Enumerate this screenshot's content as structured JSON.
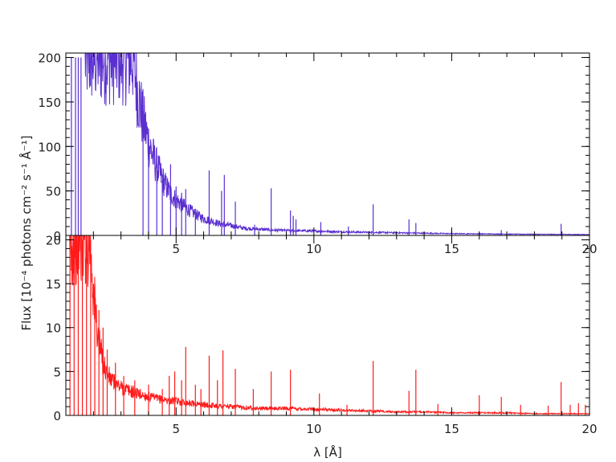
{
  "chart_data": [
    {
      "type": "line",
      "panel": "top",
      "xlabel": "",
      "ylabel": "",
      "xlim": [
        1.0,
        20.0
      ],
      "ylim": [
        0,
        205
      ],
      "xticks": [
        5,
        10,
        15,
        20
      ],
      "yticks": [
        0,
        50,
        100,
        150,
        200
      ],
      "xtick_labels": [
        "5",
        "10",
        "15",
        "20"
      ],
      "ytick_labels": [
        "0",
        "50",
        "100",
        "150",
        "200"
      ],
      "color": "#5a2fd0",
      "grid": false,
      "continuum": [
        [
          1.7,
          200
        ],
        [
          3.45,
          200
        ],
        [
          3.6,
          162
        ],
        [
          3.8,
          130
        ],
        [
          4.0,
          105
        ],
        [
          4.2,
          85
        ],
        [
          4.4,
          70
        ],
        [
          4.6,
          57
        ],
        [
          4.8,
          47
        ],
        [
          5.0,
          40
        ],
        [
          5.2,
          35
        ],
        [
          5.4,
          30
        ],
        [
          5.6,
          26
        ],
        [
          5.8,
          22
        ],
        [
          6.0,
          19
        ],
        [
          6.3,
          16
        ],
        [
          6.6,
          13
        ],
        [
          7.0,
          11
        ],
        [
          7.5,
          8
        ],
        [
          8.0,
          7
        ],
        [
          8.5,
          6
        ],
        [
          9.0,
          5.5
        ],
        [
          10.0,
          5
        ],
        [
          11.0,
          4
        ],
        [
          12.0,
          3.5
        ],
        [
          13.0,
          3
        ],
        [
          14.0,
          2.5
        ],
        [
          15.0,
          2
        ],
        [
          16.0,
          1.8
        ],
        [
          17.0,
          1.5
        ],
        [
          18.0,
          1.3
        ],
        [
          19.0,
          1.2
        ],
        [
          20.0,
          1
        ]
      ],
      "lines": [
        [
          1.2,
          200
        ],
        [
          1.35,
          200
        ],
        [
          1.45,
          200
        ],
        [
          1.55,
          200
        ],
        [
          3.8,
          140
        ],
        [
          4.0,
          108
        ],
        [
          4.3,
          80
        ],
        [
          4.5,
          62
        ],
        [
          4.8,
          80
        ],
        [
          5.0,
          55
        ],
        [
          5.2,
          48
        ],
        [
          5.35,
          52
        ],
        [
          5.7,
          30
        ],
        [
          6.2,
          73
        ],
        [
          6.65,
          50
        ],
        [
          6.75,
          68
        ],
        [
          7.15,
          38
        ],
        [
          7.85,
          12
        ],
        [
          8.45,
          53
        ],
        [
          9.15,
          28
        ],
        [
          9.25,
          22
        ],
        [
          9.35,
          18
        ],
        [
          10.25,
          15
        ],
        [
          11.25,
          10
        ],
        [
          12.15,
          35
        ],
        [
          13.45,
          18
        ],
        [
          13.7,
          14
        ],
        [
          15.0,
          6
        ],
        [
          16.8,
          6
        ],
        [
          18.97,
          13
        ]
      ]
    },
    {
      "type": "line",
      "panel": "bottom",
      "xlabel": "λ [Å]",
      "ylabel": "Flux [10⁻⁴ photons cm⁻² s⁻¹ Å⁻¹]",
      "xlim": [
        1.0,
        20.0
      ],
      "ylim": [
        0,
        20.5
      ],
      "xticks": [
        5,
        10,
        15,
        20
      ],
      "yticks": [
        0,
        5,
        10,
        15,
        20
      ],
      "xtick_labels": [
        "5",
        "10",
        "15",
        "20"
      ],
      "ytick_labels": [
        "0",
        "5",
        "10",
        "15",
        "20"
      ],
      "color": "#ff1a1a",
      "grid": false,
      "continuum": [
        [
          1.1,
          20
        ],
        [
          1.9,
          20
        ],
        [
          2.0,
          14
        ],
        [
          2.2,
          8
        ],
        [
          2.4,
          5.5
        ],
        [
          2.6,
          4.2
        ],
        [
          2.8,
          3.6
        ],
        [
          3.0,
          3.2
        ],
        [
          3.3,
          2.8
        ],
        [
          3.6,
          2.5
        ],
        [
          4.0,
          2.1
        ],
        [
          4.5,
          1.8
        ],
        [
          5.0,
          1.6
        ],
        [
          5.5,
          1.4
        ],
        [
          6.0,
          1.2
        ],
        [
          6.5,
          1.1
        ],
        [
          7.0,
          1.0
        ],
        [
          7.5,
          0.9
        ],
        [
          8.0,
          0.8
        ],
        [
          9.0,
          0.8
        ],
        [
          10.0,
          0.7
        ],
        [
          11.0,
          0.6
        ],
        [
          12.0,
          0.5
        ],
        [
          13.0,
          0.4
        ],
        [
          14.0,
          0.4
        ],
        [
          15.0,
          0.3
        ],
        [
          16.0,
          0.3
        ],
        [
          17.0,
          0.3
        ],
        [
          18.0,
          0.2
        ],
        [
          19.0,
          0.2
        ],
        [
          20.0,
          0.2
        ]
      ],
      "lines": [
        [
          1.15,
          20
        ],
        [
          1.3,
          20
        ],
        [
          1.45,
          20
        ],
        [
          1.6,
          20
        ],
        [
          1.75,
          20
        ],
        [
          1.9,
          20
        ],
        [
          2.05,
          15
        ],
        [
          2.2,
          12
        ],
        [
          2.35,
          10
        ],
        [
          2.5,
          7.5
        ],
        [
          2.8,
          6
        ],
        [
          3.1,
          4.5
        ],
        [
          3.5,
          4
        ],
        [
          4.0,
          3.5
        ],
        [
          4.5,
          3
        ],
        [
          4.75,
          4.5
        ],
        [
          4.95,
          5
        ],
        [
          5.2,
          4
        ],
        [
          5.35,
          7.8
        ],
        [
          5.7,
          3.5
        ],
        [
          5.9,
          3
        ],
        [
          6.2,
          6.8
        ],
        [
          6.5,
          4
        ],
        [
          6.7,
          7.4
        ],
        [
          7.15,
          5.3
        ],
        [
          7.8,
          3
        ],
        [
          8.45,
          5
        ],
        [
          9.15,
          5.2
        ],
        [
          10.2,
          2.5
        ],
        [
          11.2,
          1.2
        ],
        [
          12.15,
          6.2
        ],
        [
          13.45,
          2.8
        ],
        [
          13.7,
          5.2
        ],
        [
          14.5,
          1.3
        ],
        [
          16.0,
          2.3
        ],
        [
          16.8,
          2.1
        ],
        [
          17.5,
          1.2
        ],
        [
          18.5,
          1.1
        ],
        [
          18.97,
          3.8
        ],
        [
          19.3,
          1.2
        ],
        [
          19.6,
          1.4
        ],
        [
          19.85,
          1.2
        ]
      ]
    }
  ]
}
